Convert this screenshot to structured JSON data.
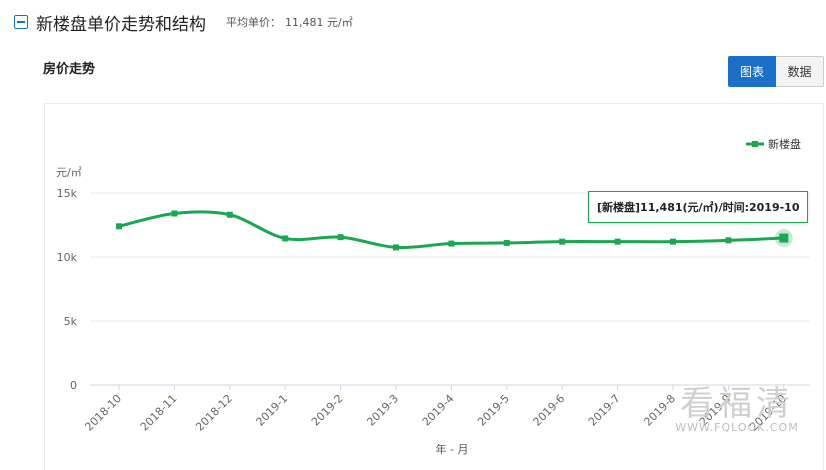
{
  "header": {
    "title": "新楼盘单价走势和结构",
    "avg_label": "平均单价：",
    "avg_value": "11,481 元/㎡"
  },
  "section": {
    "title": "房价走势"
  },
  "tabs": {
    "chart_label": "图表",
    "data_label": "数据"
  },
  "tooltip": {
    "text": "[新楼盘]11,481(元/㎡)/时间:2019-10"
  },
  "watermark": {
    "cn": "看福清",
    "en": "WWW.FQLOOK.COM"
  },
  "colors": {
    "series": "#19a84f",
    "accent": "#1a6fc9"
  },
  "chart_data": {
    "type": "line",
    "title": "",
    "ylabel": "元/㎡",
    "xlabel": "年 - 月",
    "ylim": [
      0,
      15000
    ],
    "yticks": [
      0,
      5000,
      10000,
      15000
    ],
    "ytick_labels": [
      "0",
      "5k",
      "10k",
      "15k"
    ],
    "grid": true,
    "legend": "top-right",
    "categories": [
      "2018-10",
      "2018-11",
      "2018-12",
      "2019-1",
      "2019-2",
      "2019-3",
      "2019-4",
      "2019-5",
      "2019-6",
      "2019-7",
      "2019-8",
      "2019-9",
      "2019-10"
    ],
    "series": [
      {
        "name": "新楼盘",
        "values": [
          12400,
          13400,
          13300,
          11450,
          11550,
          10750,
          11050,
          11100,
          11200,
          11200,
          11200,
          11300,
          11481
        ]
      }
    ]
  }
}
